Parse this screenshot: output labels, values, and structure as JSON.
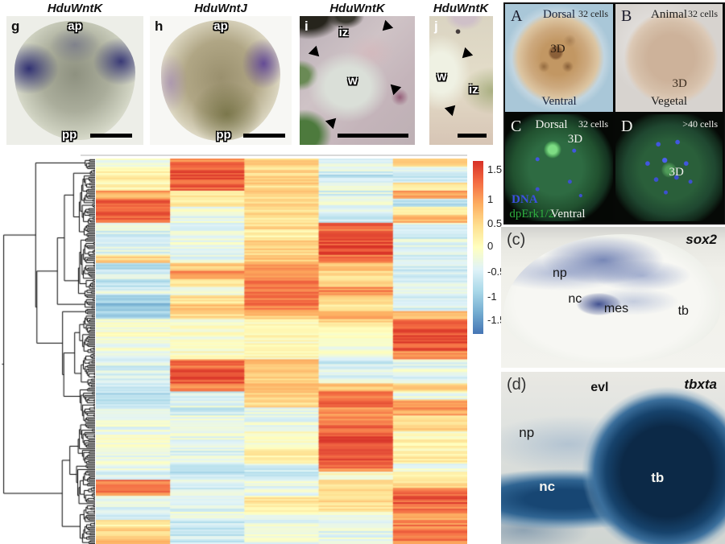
{
  "top_panels": [
    {
      "letter": "g",
      "title": "HduWntK",
      "ap": "ap",
      "pp": "pp"
    },
    {
      "letter": "h",
      "title": "HduWntJ",
      "ap": "ap",
      "pp": "pp"
    },
    {
      "letter": "i",
      "title": "HduWntK",
      "iz": "iz",
      "w": "w"
    },
    {
      "letter": "j",
      "title": "HduWntK",
      "iz": "iz",
      "w": "w"
    }
  ],
  "embryo_group": {
    "panels": [
      {
        "letter": "A",
        "top": "Dorsal",
        "cells": "32 cells",
        "center": "3D",
        "bottom": "Ventral"
      },
      {
        "letter": "B",
        "top": "Animal",
        "cells": "32 cells",
        "center": "3D",
        "bottom": "Vegetal"
      },
      {
        "letter": "C",
        "top": "Dorsal",
        "cells": "32 cells",
        "center": "3D",
        "bottom": "Ventral",
        "dna": "DNA",
        "erk": "dpErk1/2"
      },
      {
        "letter": "D",
        "cells": ">40 cells",
        "center": "3D"
      }
    ]
  },
  "panel_c": {
    "letter": "(c)",
    "gene": "sox2",
    "np": "np",
    "nc": "nc",
    "mes": "mes",
    "tb": "tb"
  },
  "panel_d": {
    "letter": "(d)",
    "gene": "tbxta",
    "evl": "evl",
    "np": "np",
    "nc": "nc",
    "tb": "tb"
  },
  "chart_data": {
    "type": "heatmap",
    "title": "",
    "columns": 5,
    "row_clustering": "dendrogram on left",
    "legend_position": "right",
    "value_range": [
      -1.75,
      1.75
    ],
    "colorbar": {
      "ticks": [
        "1.5",
        "1",
        "0.5",
        "0",
        "-0.5",
        "-1",
        "-1.5"
      ],
      "colors_high_to_low": [
        "#d73027",
        "#f46d43",
        "#fdae61",
        "#fee090",
        "#ffffbf",
        "#e0f3f8",
        "#abd9e9",
        "#74add1",
        "#4575b4"
      ]
    },
    "rows": [
      [
        -0.3,
        1.2,
        0.45,
        -0.4,
        0.5
      ],
      [
        0.2,
        1.45,
        0.5,
        -0.45,
        -0.5
      ],
      [
        0.3,
        1.45,
        0.55,
        -0.7,
        -0.5
      ],
      [
        0.1,
        1.35,
        0.5,
        -0.4,
        0.3
      ],
      [
        0.9,
        0.3,
        0.45,
        -0.45,
        1.0
      ],
      [
        1.5,
        0.2,
        0.4,
        -0.3,
        -0.8
      ],
      [
        1.5,
        -0.2,
        0.4,
        -0.35,
        0.0
      ],
      [
        1.4,
        -0.3,
        0.2,
        -0.55,
        0.9
      ],
      [
        -0.3,
        -0.3,
        0.45,
        1.3,
        -0.4
      ],
      [
        -0.45,
        -0.3,
        0.2,
        1.5,
        -0.7
      ],
      [
        -0.4,
        -0.25,
        0.5,
        1.5,
        -0.4
      ],
      [
        -0.4,
        -0.4,
        0.5,
        1.45,
        -0.5
      ],
      [
        0.5,
        -0.3,
        0.6,
        1.3,
        -0.45
      ],
      [
        -0.7,
        0.6,
        0.9,
        0.6,
        -0.55
      ],
      [
        -0.45,
        1.1,
        1.0,
        0.5,
        -0.45
      ],
      [
        -0.8,
        0.3,
        1.25,
        0.55,
        -0.5
      ],
      [
        -0.4,
        -0.2,
        1.3,
        1.1,
        -0.4
      ],
      [
        -0.9,
        0.35,
        1.25,
        0.5,
        -0.6
      ],
      [
        -1.2,
        0.6,
        1.2,
        0.4,
        -0.45
      ],
      [
        -0.9,
        0.45,
        0.6,
        0.8,
        0.7
      ],
      [
        -0.15,
        -0.15,
        0.0,
        0.45,
        1.5
      ],
      [
        -0.1,
        -0.1,
        0.0,
        0.0,
        1.5
      ],
      [
        -0.15,
        -0.1,
        0.05,
        -0.1,
        1.5
      ],
      [
        -0.2,
        -0.1,
        0.0,
        -0.1,
        1.45
      ],
      [
        -0.5,
        0.0,
        0.1,
        -0.2,
        1.1
      ],
      [
        -0.5,
        1.3,
        0.7,
        -0.6,
        -0.4
      ],
      [
        -0.45,
        1.45,
        0.7,
        -0.4,
        -0.3
      ],
      [
        -0.4,
        1.45,
        0.65,
        -0.45,
        -0.4
      ],
      [
        -0.7,
        1.2,
        0.7,
        0.7,
        0.7
      ],
      [
        -0.8,
        -0.5,
        0.5,
        1.2,
        -0.3
      ],
      [
        -0.7,
        -0.4,
        0.5,
        1.35,
        0.9
      ],
      [
        -0.45,
        -0.6,
        -0.3,
        1.0,
        1.0
      ],
      [
        -0.3,
        -0.3,
        -0.3,
        1.1,
        0.5
      ],
      [
        -0.3,
        -0.45,
        -0.25,
        1.3,
        0.6
      ],
      [
        -0.2,
        -0.3,
        -0.1,
        1.5,
        0.0
      ],
      [
        -0.1,
        -0.3,
        -0.1,
        1.5,
        0.25
      ],
      [
        -0.1,
        -0.45,
        0.2,
        1.5,
        0.1
      ],
      [
        -0.3,
        -0.3,
        0.2,
        1.45,
        0.3
      ],
      [
        -0.3,
        -0.6,
        -0.5,
        1.2,
        -0.3
      ],
      [
        -0.5,
        -0.7,
        -0.6,
        0.0,
        0.35
      ],
      [
        1.2,
        -0.3,
        -0.3,
        0.3,
        0.5
      ],
      [
        1.2,
        -0.5,
        -0.3,
        0.4,
        1.2
      ],
      [
        -0.3,
        -0.4,
        0.25,
        0.4,
        1.45
      ],
      [
        -0.4,
        -0.45,
        0.1,
        0.4,
        1.3
      ],
      [
        -0.6,
        -0.3,
        -0.2,
        -0.3,
        1.0
      ],
      [
        0.3,
        -0.6,
        -0.3,
        -0.3,
        1.2
      ],
      [
        0.6,
        -0.7,
        -0.25,
        -0.4,
        1.3
      ],
      [
        0.8,
        -0.6,
        -0.3,
        -0.3,
        1.2
      ]
    ]
  }
}
